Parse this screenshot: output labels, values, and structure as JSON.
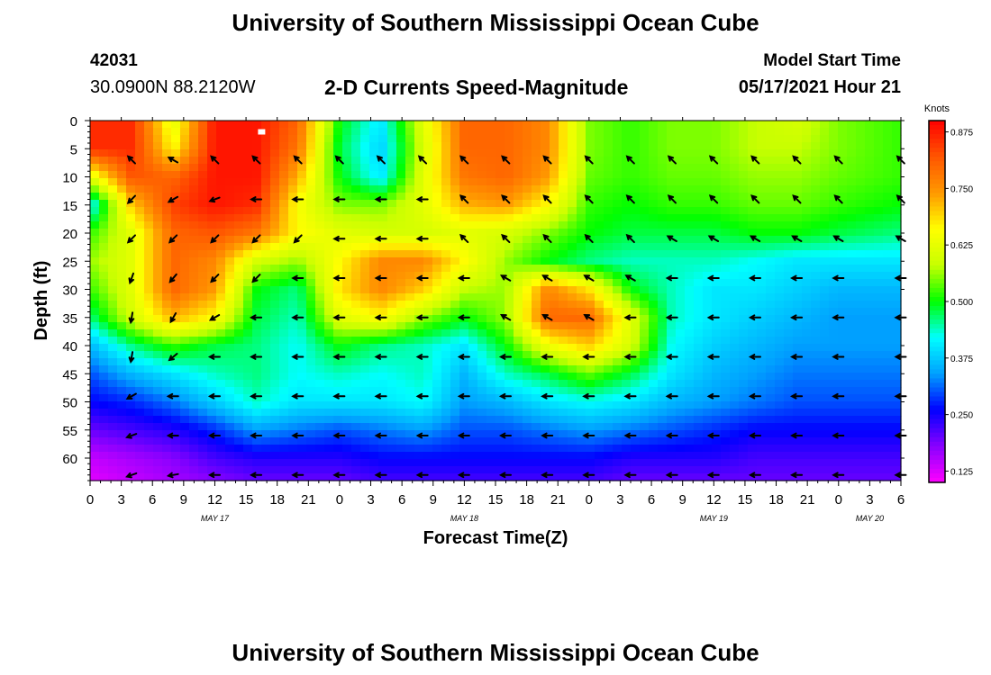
{
  "header": {
    "title": "University of Southern Mississippi Ocean Cube",
    "station_id": "42031",
    "station_coords": "30.0900N  88.2120W",
    "subtitle": "2-D Currents Speed-Magnitude",
    "start_label": "Model Start Time",
    "start_value": "05/17/2021 Hour 21"
  },
  "footer": {
    "title": "University of Southern Mississippi Ocean Cube"
  },
  "colors": {
    "speed_scale": [
      "#ff00ff",
      "#8800ff",
      "#0000ff",
      "#00a0ff",
      "#00ffff",
      "#00ff00",
      "#c8ff00",
      "#ffff00",
      "#ff9900",
      "#ff5500",
      "#ff0000"
    ],
    "arrow": "#000000",
    "marker": "#ffffff"
  },
  "chart_data": {
    "type": "heatmap",
    "xlabel": "Forecast Time(Z)",
    "ylabel": "Depth (ft)",
    "x_range_hours": [
      0,
      78
    ],
    "ylim": [
      0,
      64
    ],
    "y_inverted": true,
    "x_ticks": [
      "0",
      "3",
      "6",
      "9",
      "12",
      "15",
      "18",
      "21",
      "0",
      "3",
      "6",
      "9",
      "12",
      "15",
      "18",
      "21",
      "0",
      "3",
      "6",
      "9",
      "12",
      "15",
      "18",
      "21",
      "0",
      "3",
      "6"
    ],
    "y_ticks": [
      "0",
      "5",
      "10",
      "15",
      "20",
      "25",
      "30",
      "35",
      "40",
      "45",
      "50",
      "55",
      "60"
    ],
    "day_labels": [
      {
        "text": "MAY 17",
        "hour": 12
      },
      {
        "text": "MAY 18",
        "hour": 36
      },
      {
        "text": "MAY 19",
        "hour": 60
      },
      {
        "text": "MAY 20",
        "hour": 75
      }
    ],
    "colorbar": {
      "title": "Knots",
      "min": 0.1,
      "max": 0.9,
      "tick_labels": [
        "0.875",
        "0.750",
        "0.625",
        "0.500",
        "0.375",
        "0.250",
        "0.125"
      ],
      "tick_values": [
        0.875,
        0.75,
        0.625,
        0.5,
        0.375,
        0.25,
        0.125
      ]
    },
    "speed_grid": {
      "hours": [
        0,
        4,
        8,
        12,
        16,
        20,
        24,
        28,
        32,
        36,
        40,
        44,
        48,
        52,
        56,
        60,
        64,
        68,
        72,
        78
      ],
      "depths": [
        0,
        5,
        10,
        15,
        20,
        25,
        30,
        35,
        40,
        45,
        50,
        55,
        60,
        64
      ],
      "knots": [
        [
          0.86,
          0.86,
          0.62,
          0.88,
          0.88,
          0.8,
          0.5,
          0.4,
          0.62,
          0.8,
          0.8,
          0.76,
          0.55,
          0.52,
          0.55,
          0.55,
          0.58,
          0.6,
          0.55,
          0.52
        ],
        [
          0.86,
          0.86,
          0.66,
          0.88,
          0.88,
          0.78,
          0.48,
          0.38,
          0.6,
          0.8,
          0.8,
          0.76,
          0.55,
          0.52,
          0.55,
          0.55,
          0.58,
          0.58,
          0.55,
          0.52
        ],
        [
          0.62,
          0.82,
          0.8,
          0.88,
          0.88,
          0.72,
          0.5,
          0.4,
          0.62,
          0.78,
          0.8,
          0.74,
          0.54,
          0.52,
          0.54,
          0.54,
          0.56,
          0.56,
          0.54,
          0.52
        ],
        [
          0.4,
          0.7,
          0.84,
          0.88,
          0.86,
          0.65,
          0.55,
          0.55,
          0.62,
          0.72,
          0.74,
          0.66,
          0.52,
          0.5,
          0.52,
          0.52,
          0.54,
          0.54,
          0.52,
          0.5
        ],
        [
          0.52,
          0.62,
          0.8,
          0.82,
          0.78,
          0.66,
          0.62,
          0.6,
          0.6,
          0.62,
          0.6,
          0.55,
          0.5,
          0.48,
          0.48,
          0.48,
          0.5,
          0.5,
          0.48,
          0.46
        ],
        [
          0.56,
          0.62,
          0.8,
          0.76,
          0.6,
          0.56,
          0.66,
          0.76,
          0.76,
          0.66,
          0.56,
          0.5,
          0.46,
          0.44,
          0.44,
          0.44,
          0.42,
          0.4,
          0.4,
          0.4
        ],
        [
          0.52,
          0.62,
          0.8,
          0.74,
          0.5,
          0.46,
          0.68,
          0.76,
          0.7,
          0.58,
          0.56,
          0.76,
          0.68,
          0.5,
          0.44,
          0.4,
          0.4,
          0.38,
          0.36,
          0.36
        ],
        [
          0.46,
          0.6,
          0.72,
          0.66,
          0.48,
          0.44,
          0.62,
          0.66,
          0.56,
          0.5,
          0.56,
          0.8,
          0.8,
          0.62,
          0.44,
          0.4,
          0.38,
          0.36,
          0.34,
          0.34
        ],
        [
          0.36,
          0.46,
          0.52,
          0.48,
          0.46,
          0.42,
          0.5,
          0.46,
          0.44,
          0.4,
          0.5,
          0.64,
          0.7,
          0.6,
          0.42,
          0.38,
          0.36,
          0.34,
          0.34,
          0.34
        ],
        [
          0.3,
          0.36,
          0.4,
          0.44,
          0.46,
          0.42,
          0.44,
          0.42,
          0.44,
          0.36,
          0.44,
          0.48,
          0.54,
          0.48,
          0.4,
          0.36,
          0.34,
          0.32,
          0.32,
          0.32
        ],
        [
          0.26,
          0.28,
          0.32,
          0.38,
          0.44,
          0.4,
          0.4,
          0.4,
          0.42,
          0.34,
          0.36,
          0.4,
          0.42,
          0.4,
          0.36,
          0.34,
          0.32,
          0.3,
          0.3,
          0.3
        ],
        [
          0.2,
          0.22,
          0.24,
          0.28,
          0.34,
          0.32,
          0.3,
          0.32,
          0.34,
          0.3,
          0.3,
          0.32,
          0.34,
          0.32,
          0.3,
          0.28,
          0.26,
          0.26,
          0.26,
          0.26
        ],
        [
          0.14,
          0.16,
          0.18,
          0.22,
          0.24,
          0.24,
          0.24,
          0.26,
          0.26,
          0.26,
          0.26,
          0.26,
          0.26,
          0.24,
          0.24,
          0.24,
          0.22,
          0.22,
          0.22,
          0.22
        ],
        [
          0.12,
          0.14,
          0.16,
          0.18,
          0.2,
          0.2,
          0.2,
          0.22,
          0.22,
          0.22,
          0.22,
          0.22,
          0.22,
          0.2,
          0.2,
          0.2,
          0.2,
          0.2,
          0.2,
          0.2
        ]
      ]
    },
    "vector_grid": {
      "hours": [
        4,
        8,
        12,
        16,
        20,
        24,
        28,
        32,
        36,
        40,
        44,
        48,
        52,
        56,
        60,
        64,
        68,
        72,
        78
      ],
      "depths": [
        7,
        14,
        21,
        28,
        35,
        42,
        49,
        56,
        63
      ],
      "directions_deg": [
        [
          315,
          300,
          315,
          315,
          315,
          315,
          315,
          315,
          315,
          315,
          315,
          315,
          315,
          315,
          315,
          315,
          315,
          315,
          315
        ],
        [
          225,
          240,
          250,
          270,
          270,
          270,
          270,
          270,
          315,
          315,
          315,
          315,
          315,
          315,
          315,
          315,
          315,
          315,
          315
        ],
        [
          225,
          225,
          225,
          225,
          225,
          270,
          270,
          270,
          315,
          315,
          315,
          315,
          315,
          300,
          300,
          300,
          300,
          300,
          300
        ],
        [
          200,
          220,
          225,
          225,
          270,
          270,
          270,
          270,
          270,
          300,
          300,
          300,
          300,
          270,
          270,
          270,
          270,
          270,
          270
        ],
        [
          190,
          210,
          240,
          270,
          270,
          270,
          270,
          270,
          270,
          300,
          300,
          300,
          270,
          270,
          270,
          270,
          270,
          270,
          270
        ],
        [
          190,
          230,
          270,
          270,
          270,
          270,
          270,
          270,
          270,
          270,
          270,
          270,
          270,
          270,
          270,
          270,
          270,
          270,
          270
        ],
        [
          240,
          270,
          270,
          270,
          270,
          270,
          270,
          270,
          270,
          270,
          270,
          270,
          270,
          270,
          270,
          270,
          270,
          270,
          270
        ],
        [
          250,
          270,
          270,
          270,
          270,
          270,
          270,
          270,
          270,
          270,
          270,
          270,
          270,
          270,
          270,
          270,
          270,
          270,
          270
        ],
        [
          250,
          260,
          270,
          270,
          270,
          270,
          270,
          270,
          270,
          270,
          270,
          270,
          270,
          270,
          270,
          270,
          270,
          270,
          270
        ]
      ]
    },
    "start_marker": {
      "hour": 16.5,
      "depth": 2
    }
  }
}
